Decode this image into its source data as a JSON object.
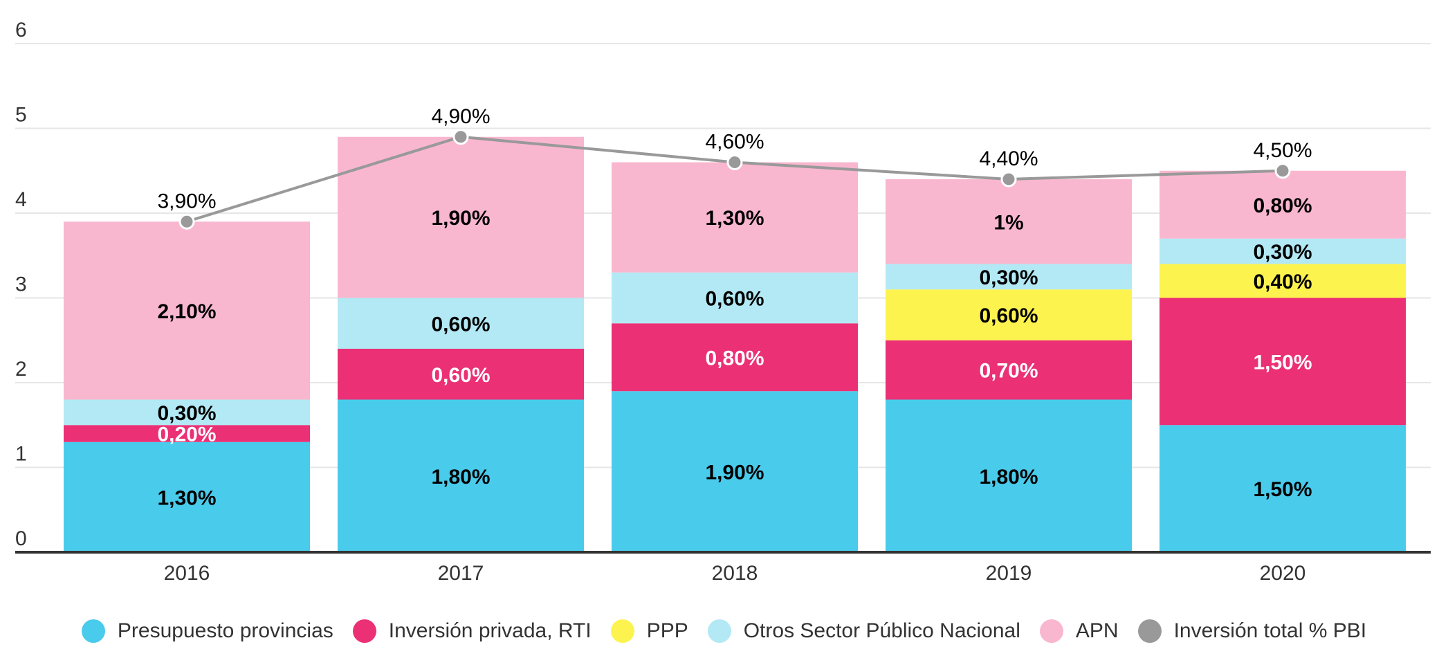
{
  "chart_data": {
    "type": "bar",
    "stacked": true,
    "categories": [
      "2016",
      "2017",
      "2018",
      "2019",
      "2020"
    ],
    "ylim": [
      0,
      6
    ],
    "yticks": [
      "0",
      "1",
      "2",
      "3",
      "4",
      "5",
      "6"
    ],
    "grid": true,
    "legend_position": "bottom",
    "series": [
      {
        "name": "Presupuesto provincias",
        "color": "#49CBEC",
        "values": [
          1.3,
          1.8,
          1.9,
          1.8,
          1.5
        ],
        "labels": [
          "1,30%",
          "1,80%",
          "1,90%",
          "1,80%",
          "1,50%"
        ],
        "label_color": "#000000"
      },
      {
        "name": "Inversión privada, RTI",
        "color": "#EB3075",
        "values": [
          0.2,
          0.6,
          0.8,
          0.7,
          1.5
        ],
        "labels": [
          "0,20%",
          "0,60%",
          "0,80%",
          "0,70%",
          "1,50%"
        ],
        "label_color": "#ffffff"
      },
      {
        "name": "PPP",
        "color": "#FDF34F",
        "values": [
          0,
          0,
          0,
          0.6,
          0.4
        ],
        "labels": [
          "",
          "",
          "",
          "0,60%",
          "0,40%"
        ],
        "label_color": "#000000"
      },
      {
        "name": "Otros Sector Público Nacional",
        "color": "#B2E9F5",
        "values": [
          0.3,
          0.6,
          0.6,
          0.3,
          0.3
        ],
        "labels": [
          "0,30%",
          "0,60%",
          "0,60%",
          "0,30%",
          "0,30%"
        ],
        "label_color": "#000000"
      },
      {
        "name": "APN",
        "color": "#F9B7CF",
        "values": [
          2.1,
          1.9,
          1.3,
          1.0,
          0.8
        ],
        "labels": [
          "2,10%",
          "1,90%",
          "1,30%",
          "1%",
          "0,80%"
        ],
        "label_color": "#000000"
      }
    ],
    "line_series": {
      "name": "Inversión total % PBI",
      "color": "#999999",
      "values": [
        3.9,
        4.9,
        4.6,
        4.4,
        4.5
      ],
      "labels": [
        "3,90%",
        "4,90%",
        "4,60%",
        "4,40%",
        "4,50%"
      ]
    }
  }
}
